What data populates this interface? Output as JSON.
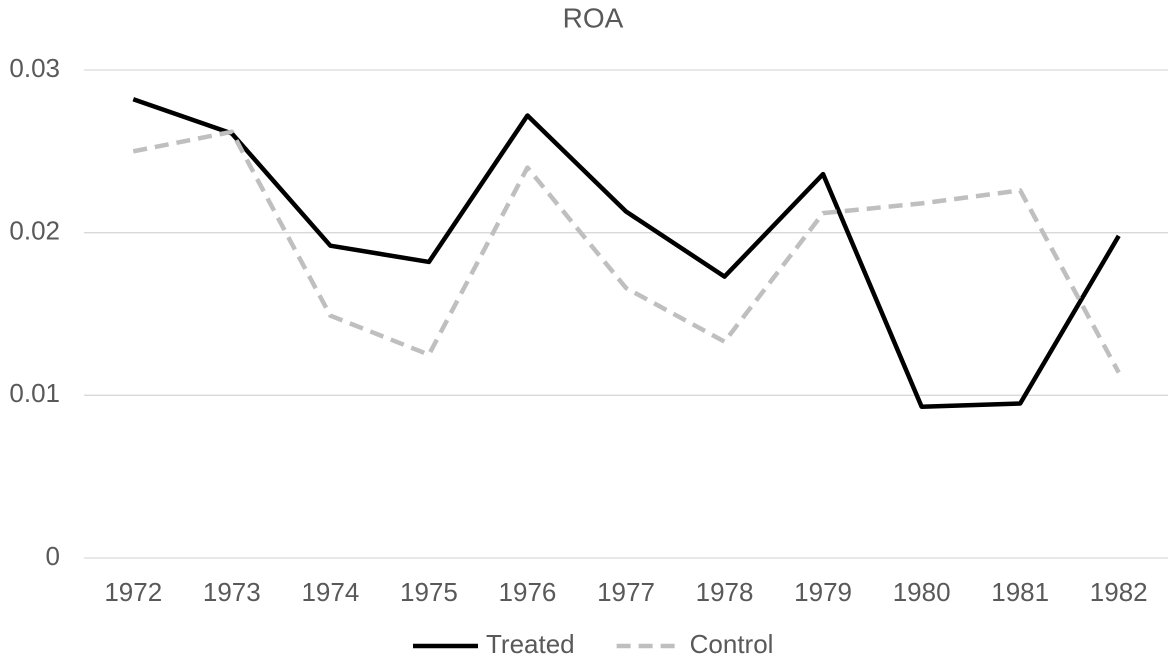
{
  "chart_data": {
    "type": "line",
    "title": "ROA",
    "categories": [
      "1972",
      "1973",
      "1974",
      "1975",
      "1976",
      "1977",
      "1978",
      "1979",
      "1980",
      "1981",
      "1982"
    ],
    "series": [
      {
        "name": "Treated",
        "color": "#000000",
        "dashed": false,
        "values": [
          0.0282,
          0.0261,
          0.0192,
          0.0182,
          0.0272,
          0.0213,
          0.0173,
          0.0236,
          0.0093,
          0.0095,
          0.0198
        ]
      },
      {
        "name": "Control",
        "color": "#bfbfbf",
        "dashed": true,
        "values": [
          0.025,
          0.0262,
          0.0149,
          0.0125,
          0.024,
          0.0166,
          0.0133,
          0.0212,
          0.0218,
          0.0226,
          0.0114
        ]
      }
    ],
    "ylim": [
      0,
      0.03
    ],
    "yticks": [
      0,
      0.01,
      0.02,
      0.03
    ],
    "grid": true,
    "legend": "bottom"
  }
}
